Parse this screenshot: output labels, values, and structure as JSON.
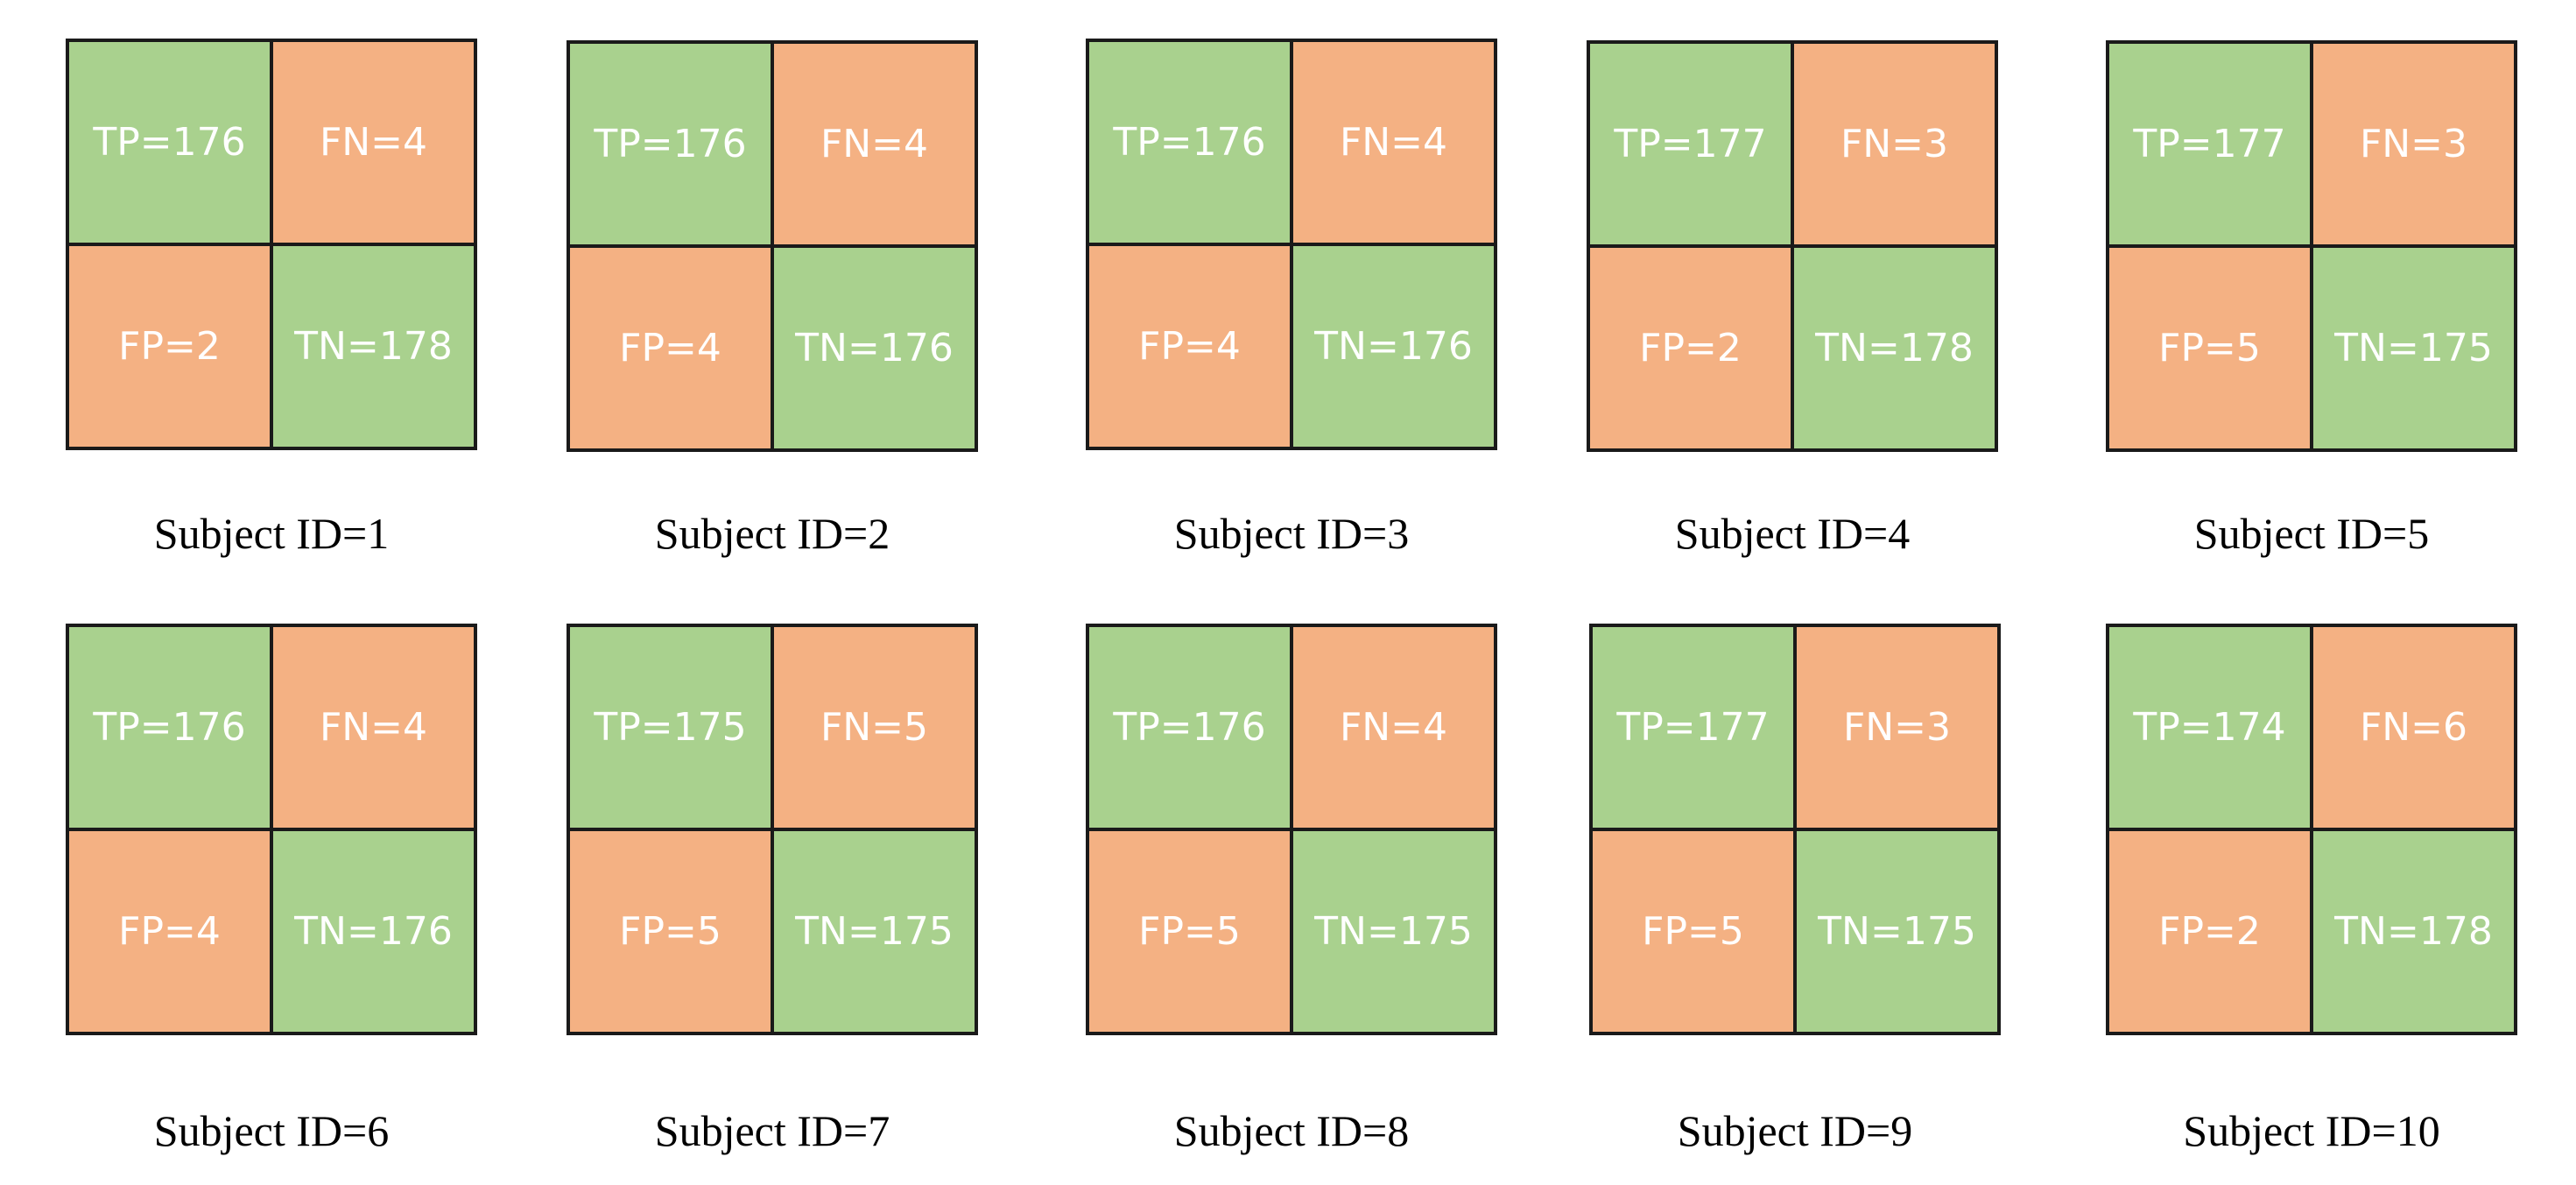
{
  "colors": {
    "correct": "#a9d18e",
    "incorrect": "#f4b183",
    "border": "#1a1a1a",
    "cell_text": "#ffffff"
  },
  "matrices": [
    {
      "caption": "Subject ID=1",
      "tp": "TP=176",
      "fn": "FN=4",
      "fp": "FP=2",
      "tn": "TN=178"
    },
    {
      "caption": "Subject ID=2",
      "tp": "TP=176",
      "fn": "FN=4",
      "fp": "FP=4",
      "tn": "TN=176"
    },
    {
      "caption": "Subject ID=3",
      "tp": "TP=176",
      "fn": "FN=4",
      "fp": "FP=4",
      "tn": "TN=176"
    },
    {
      "caption": "Subject ID=4",
      "tp": "TP=177",
      "fn": "FN=3",
      "fp": "FP=2",
      "tn": "TN=178"
    },
    {
      "caption": "Subject ID=5",
      "tp": "TP=177",
      "fn": "FN=3",
      "fp": "FP=5",
      "tn": "TN=175"
    },
    {
      "caption": "Subject ID=6",
      "tp": "TP=176",
      "fn": "FN=4",
      "fp": "FP=4",
      "tn": "TN=176"
    },
    {
      "caption": "Subject ID=7",
      "tp": "TP=175",
      "fn": "FN=5",
      "fp": "FP=5",
      "tn": "TN=175"
    },
    {
      "caption": "Subject ID=8",
      "tp": "TP=176",
      "fn": "FN=4",
      "fp": "FP=5",
      "tn": "TN=175"
    },
    {
      "caption": "Subject ID=9",
      "tp": "TP=177",
      "fn": "FN=3",
      "fp": "FP=5",
      "tn": "TN=175"
    },
    {
      "caption": "Subject ID=10",
      "tp": "TP=174",
      "fn": "FN=6",
      "fp": "FP=2",
      "tn": "TN=178"
    }
  ]
}
